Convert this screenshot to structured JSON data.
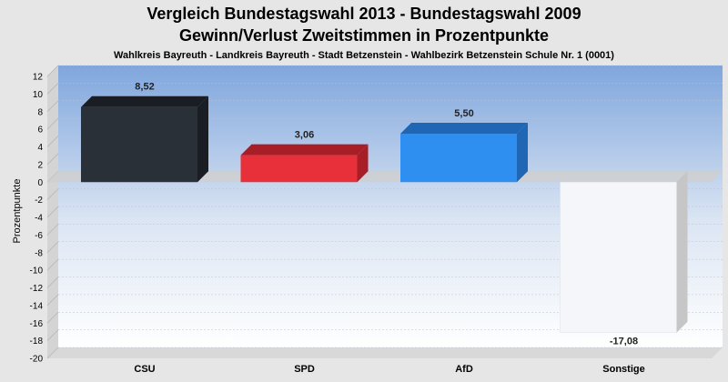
{
  "chart_data": {
    "type": "bar",
    "title": "Vergleich Bundestagswahl 2013 - Bundestagswahl 2009",
    "title2": "Gewinn/Verlust Zweitstimmen in Prozentpunkte",
    "subtitle": "Wahlkreis Bayreuth - Landkreis Bayreuth - Stadt Betzenstein - Wahlbezirk Betzenstein Schule Nr. 1 (0001)",
    "ylabel": "Prozentpunkte",
    "xlabel": "",
    "ylim": [
      -20,
      12
    ],
    "yticks": [
      "12",
      "10",
      "8",
      "6",
      "4",
      "2",
      "0",
      "-2",
      "-4",
      "-6",
      "-8",
      "-10",
      "-12",
      "-14",
      "-16",
      "-18",
      "-20"
    ],
    "grid": true,
    "categories": [
      "CSU",
      "SPD",
      "AfD",
      "Sonstige"
    ],
    "values": [
      8.52,
      3.06,
      5.5,
      -17.08
    ],
    "value_labels": [
      "8,52",
      "3,06",
      "5,50",
      "-17,08"
    ],
    "colors": [
      "#2a3038",
      "#e8303a",
      "#2f8ff0",
      "#f4f6fa"
    ],
    "side_colors": [
      "#1a1e24",
      "#a81e26",
      "#1f66b4",
      "#c6c6c6"
    ]
  }
}
